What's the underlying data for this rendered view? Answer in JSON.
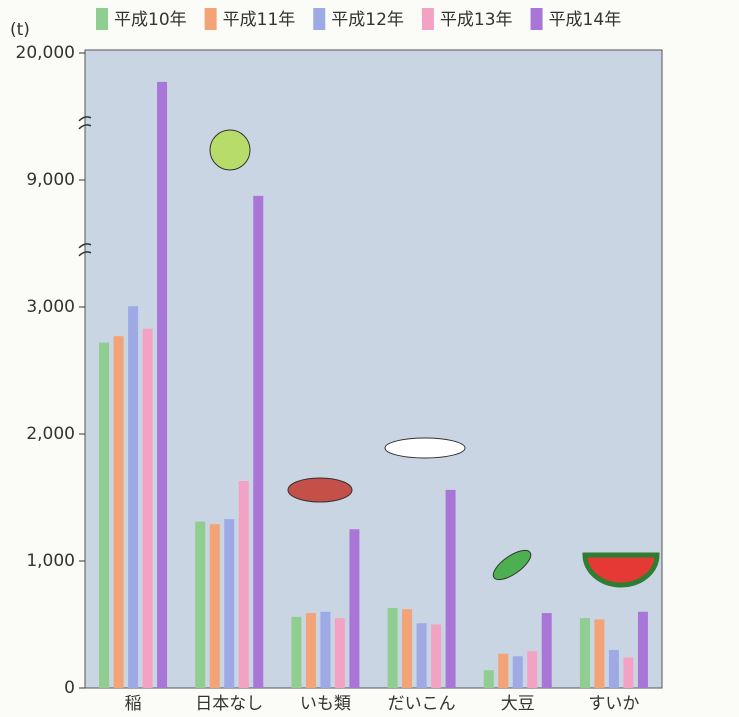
{
  "chart_data": {
    "type": "bar",
    "y_unit": "(t)",
    "categories": [
      "稲",
      "日本なし",
      "いも類",
      "だいこん",
      "大豆",
      "すいか"
    ],
    "series": [
      {
        "name": "平成10年",
        "color": "#8fce90",
        "values": [
          2720,
          1310,
          560,
          630,
          140,
          550
        ]
      },
      {
        "name": "平成11年",
        "color": "#f2a477",
        "values": [
          2770,
          1290,
          590,
          620,
          270,
          540
        ]
      },
      {
        "name": "平成12年",
        "color": "#9eaae6",
        "values": [
          3040,
          1330,
          600,
          510,
          250,
          300
        ]
      },
      {
        "name": "平成13年",
        "color": "#f3a2c4",
        "values": [
          2830,
          1630,
          550,
          500,
          290,
          240
        ]
      },
      {
        "name": "平成14年",
        "color": "#a776d6",
        "values": [
          17500,
          8250,
          1250,
          1560,
          590,
          600
        ]
      }
    ],
    "ylim": [
      0,
      20000
    ],
    "yticks": [
      0,
      {
        "value": 1000,
        "label": "1,000"
      },
      {
        "value": 2000,
        "label": "2,000"
      },
      {
        "value": 3000,
        "label": "3,000"
      },
      {
        "value": 9000,
        "label": "9,000"
      },
      {
        "value": 20000,
        "label": "20,000"
      }
    ],
    "axis_break": true,
    "legend": "top"
  }
}
